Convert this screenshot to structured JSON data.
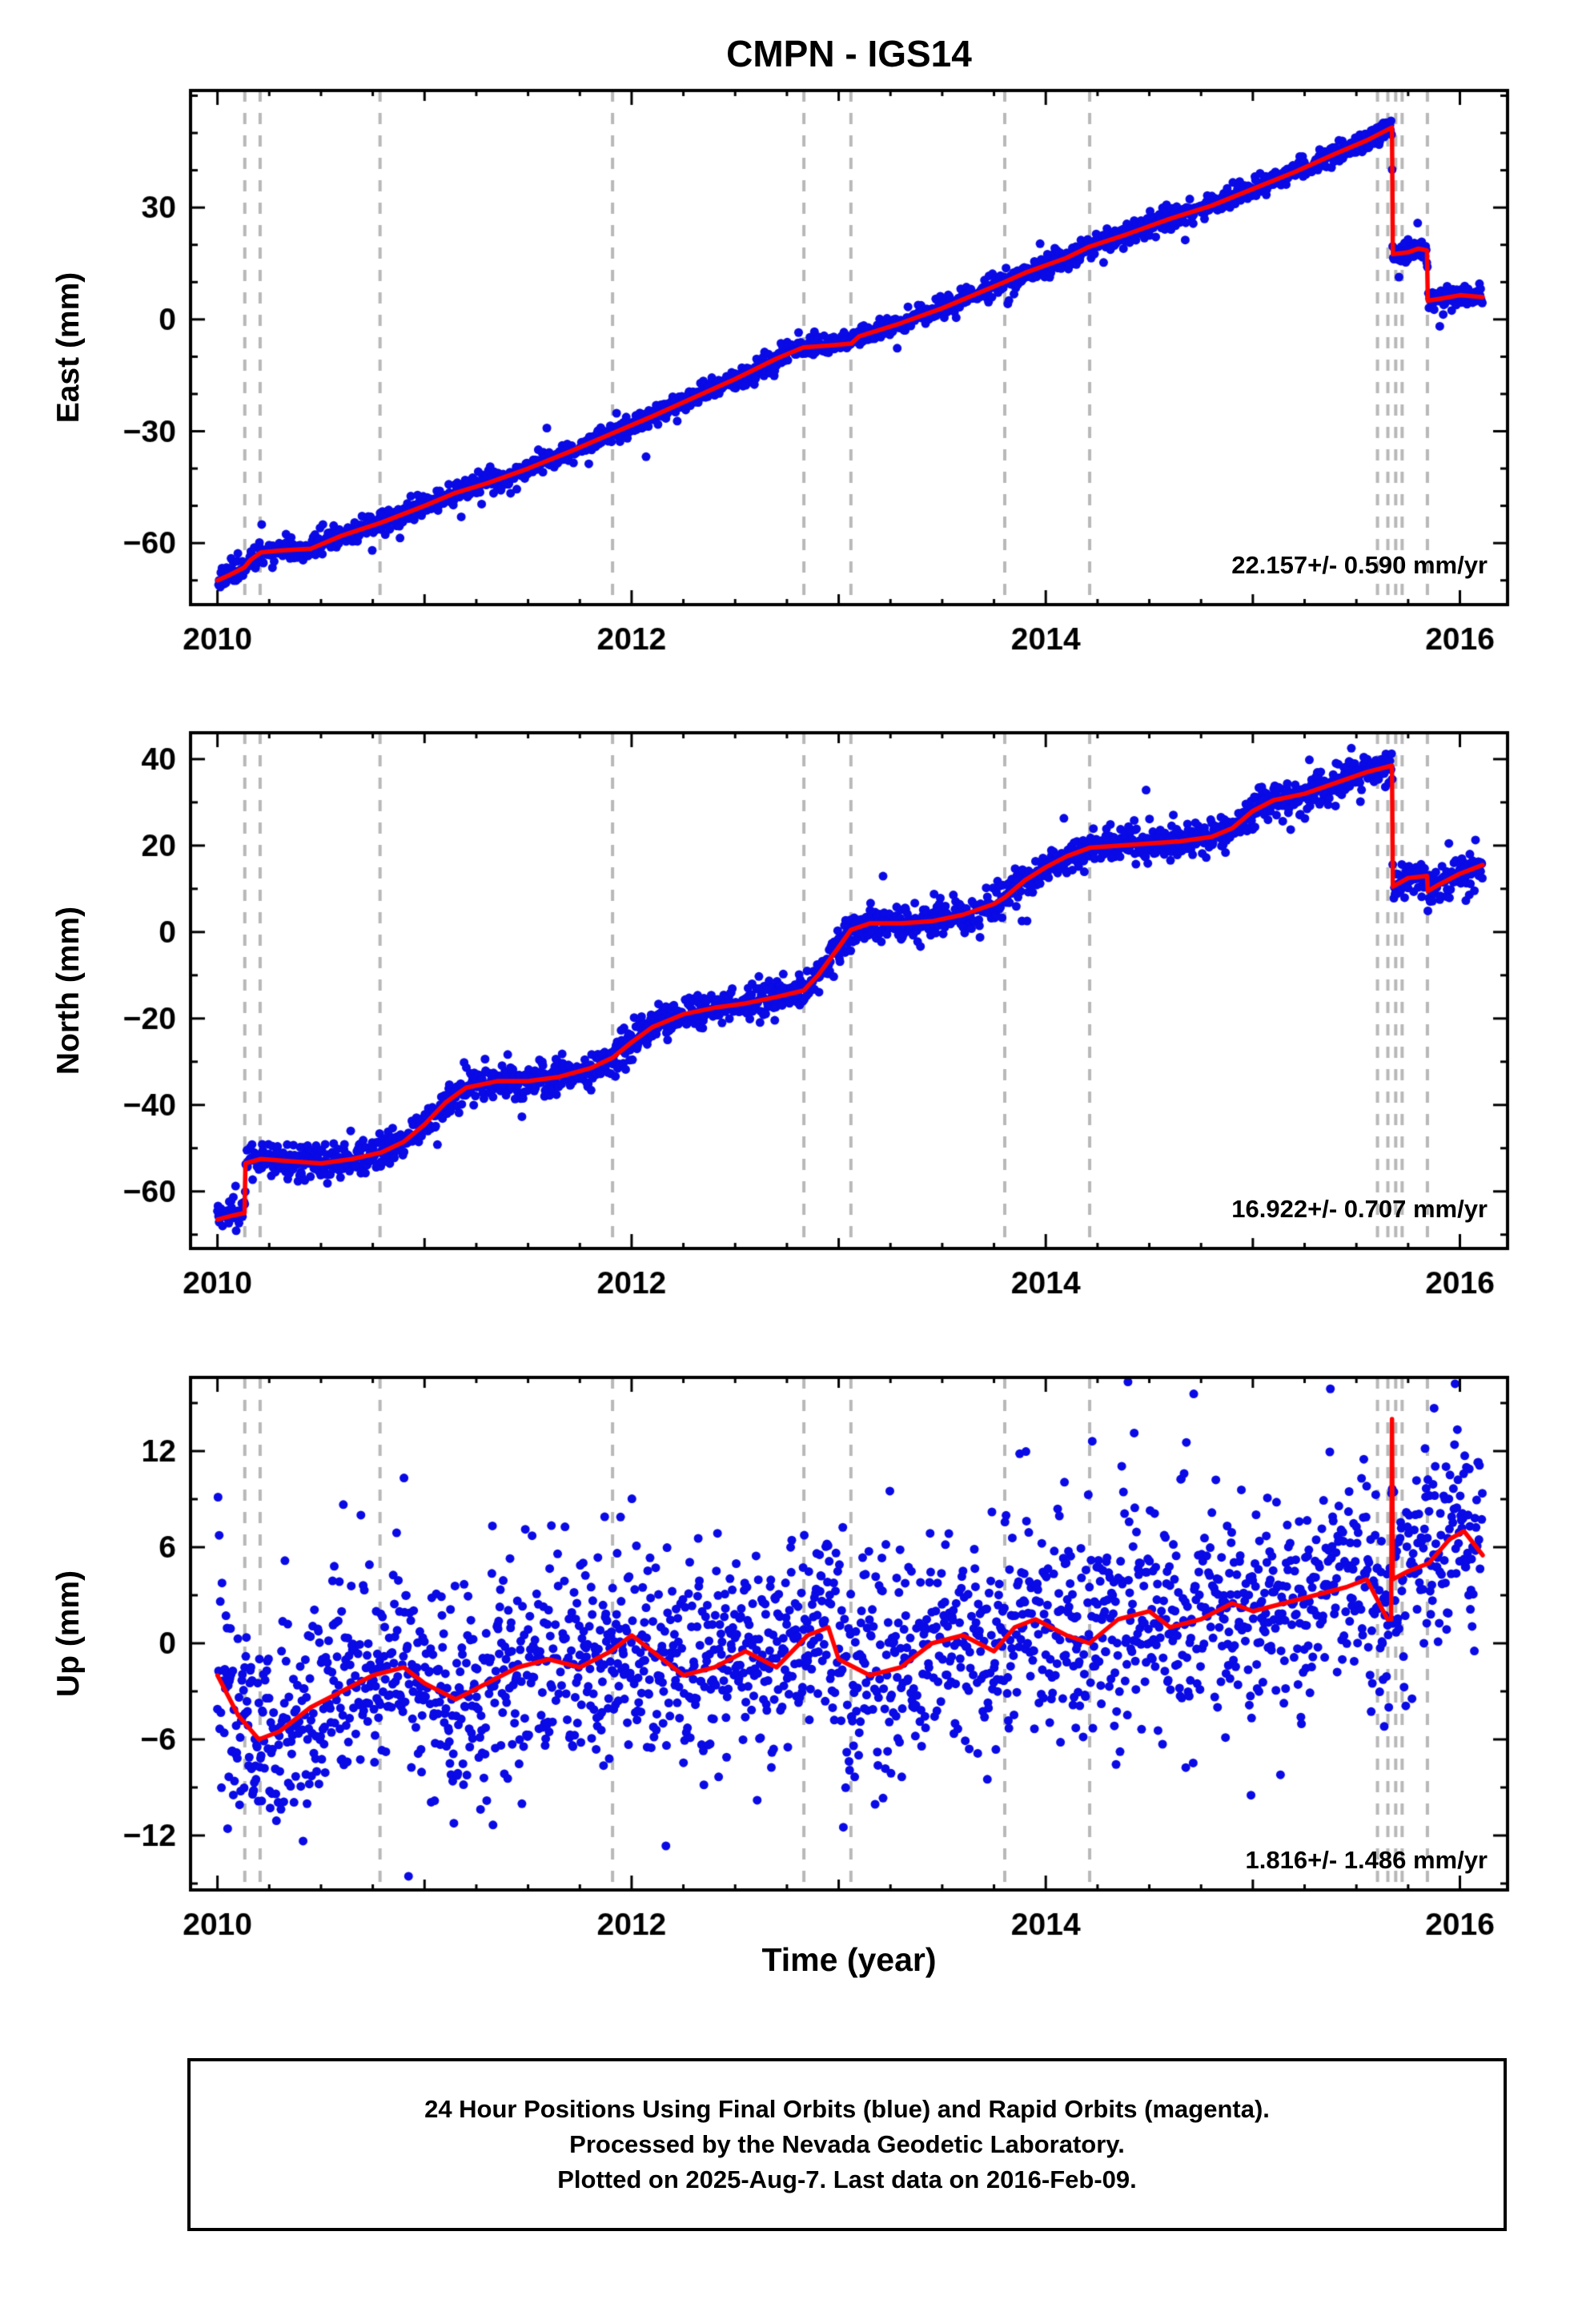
{
  "title": "CMPN - IGS14",
  "xlabel": "Time (year)",
  "footer": {
    "line1": "24 Hour Positions Using Final Orbits (blue) and Rapid Orbits (magenta).",
    "line2": "Processed by the Nevada Geodetic Laboratory.",
    "line3": "Plotted on 2025-Aug-7. Last data on 2016-Feb-09."
  },
  "colors": {
    "dots": "#0a0ae6",
    "trend": "#ff0000",
    "events": "#b8b8b8",
    "axis": "#000000",
    "text": "#000000"
  },
  "x_axis": {
    "lim": [
      2009.87,
      2016.23
    ],
    "major_ticks": [
      2010,
      2012,
      2014,
      2016
    ],
    "year_tick_step": 1,
    "minor_step": 0.25
  },
  "event_lines": [
    2010.132,
    2010.206,
    2010.785,
    2011.908,
    2012.832,
    2013.059,
    2013.802,
    2014.212,
    2015.602,
    2015.652,
    2015.69,
    2015.721,
    2015.843
  ],
  "chart_data": [
    {
      "type": "scatter",
      "name": "east",
      "ylabel": "East (mm)",
      "rate_label": "22.157+/- 0.590 mm/yr",
      "ylim": [
        -76.5,
        61.4
      ],
      "yticks": [
        30,
        0,
        -30,
        -60
      ],
      "y_minor_step": 10,
      "scatter_sigma": 1.4,
      "trend": [
        [
          2010.0,
          -70.0
        ],
        [
          2010.06,
          -68.5
        ],
        [
          2010.13,
          -66.5
        ],
        [
          2010.16,
          -64.5
        ],
        [
          2010.21,
          -62.5
        ],
        [
          2010.3,
          -62.0
        ],
        [
          2010.45,
          -61.5
        ],
        [
          2010.6,
          -58.0
        ],
        [
          2010.79,
          -54.5
        ],
        [
          2011.0,
          -50.0
        ],
        [
          2011.15,
          -46.5
        ],
        [
          2011.3,
          -44.0
        ],
        [
          2011.5,
          -40.0
        ],
        [
          2011.7,
          -35.5
        ],
        [
          2011.91,
          -30.5
        ],
        [
          2012.1,
          -26.0
        ],
        [
          2012.3,
          -21.0
        ],
        [
          2012.5,
          -16.0
        ],
        [
          2012.7,
          -10.5
        ],
        [
          2012.83,
          -7.5
        ],
        [
          2012.95,
          -7.0
        ],
        [
          2013.06,
          -6.5
        ],
        [
          2013.1,
          -4.5
        ],
        [
          2013.3,
          -1.0
        ],
        [
          2013.5,
          3.0
        ],
        [
          2013.8,
          10.0
        ],
        [
          2013.9,
          12.5
        ],
        [
          2014.1,
          16.5
        ],
        [
          2014.21,
          19.5
        ],
        [
          2014.4,
          23.0
        ],
        [
          2014.6,
          27.0
        ],
        [
          2014.8,
          30.5
        ],
        [
          2015.0,
          35.0
        ],
        [
          2015.2,
          39.5
        ],
        [
          2015.4,
          44.5
        ],
        [
          2015.55,
          48.0
        ],
        [
          2015.672,
          51.5
        ],
        [
          2015.676,
          17.5
        ],
        [
          2015.75,
          18.0
        ],
        [
          2015.8,
          19.0
        ],
        [
          2015.841,
          18.5
        ],
        [
          2015.845,
          5.0
        ],
        [
          2015.9,
          5.5
        ],
        [
          2016.0,
          6.5
        ],
        [
          2016.11,
          6.0
        ]
      ]
    },
    {
      "type": "scatter",
      "name": "north",
      "ylabel": "North (mm)",
      "rate_label": "16.922+/- 0.707 mm/yr",
      "ylim": [
        -73.2,
        46.1
      ],
      "yticks": [
        40,
        20,
        0,
        -20,
        -40,
        -60
      ],
      "y_minor_step": 10,
      "scatter_sigma": 1.9,
      "trend": [
        [
          2010.0,
          -66.5
        ],
        [
          2010.08,
          -65.5
        ],
        [
          2010.131,
          -65.0
        ],
        [
          2010.135,
          -53.5
        ],
        [
          2010.21,
          -52.5
        ],
        [
          2010.35,
          -53.0
        ],
        [
          2010.5,
          -53.5
        ],
        [
          2010.65,
          -52.5
        ],
        [
          2010.79,
          -51.0
        ],
        [
          2010.9,
          -48.5
        ],
        [
          2011.0,
          -44.5
        ],
        [
          2011.1,
          -39.5
        ],
        [
          2011.2,
          -36.0
        ],
        [
          2011.35,
          -34.5
        ],
        [
          2011.5,
          -34.5
        ],
        [
          2011.65,
          -33.5
        ],
        [
          2011.8,
          -31.5
        ],
        [
          2011.91,
          -29.0
        ],
        [
          2012.0,
          -25.5
        ],
        [
          2012.1,
          -22.0
        ],
        [
          2012.25,
          -19.0
        ],
        [
          2012.4,
          -17.5
        ],
        [
          2012.55,
          -16.5
        ],
        [
          2012.7,
          -15.0
        ],
        [
          2012.832,
          -13.5
        ],
        [
          2012.9,
          -10.0
        ],
        [
          2013.0,
          -3.5
        ],
        [
          2013.059,
          0.5
        ],
        [
          2013.15,
          2.0
        ],
        [
          2013.3,
          2.0
        ],
        [
          2013.45,
          2.5
        ],
        [
          2013.6,
          4.0
        ],
        [
          2013.75,
          6.5
        ],
        [
          2013.802,
          8.0
        ],
        [
          2013.9,
          12.0
        ],
        [
          2014.0,
          15.0
        ],
        [
          2014.1,
          17.5
        ],
        [
          2014.212,
          19.5
        ],
        [
          2014.35,
          20.0
        ],
        [
          2014.5,
          20.5
        ],
        [
          2014.65,
          21.0
        ],
        [
          2014.8,
          22.0
        ],
        [
          2014.9,
          24.0
        ],
        [
          2015.0,
          28.0
        ],
        [
          2015.1,
          30.5
        ],
        [
          2015.25,
          32.0
        ],
        [
          2015.4,
          34.5
        ],
        [
          2015.55,
          37.0
        ],
        [
          2015.672,
          38.5
        ],
        [
          2015.676,
          10.5
        ],
        [
          2015.75,
          12.5
        ],
        [
          2015.841,
          13.0
        ],
        [
          2015.845,
          9.5
        ],
        [
          2015.9,
          11.0
        ],
        [
          2016.0,
          13.5
        ],
        [
          2016.11,
          15.5
        ]
      ]
    },
    {
      "type": "scatter",
      "name": "up",
      "ylabel": "Up (mm)",
      "rate_label": "1.816+/- 1.486 mm/yr",
      "ylim": [
        -15.4,
        16.6
      ],
      "yticks": [
        12,
        6,
        0,
        -6,
        -12
      ],
      "y_minor_step": 3,
      "scatter_sigma": 3.3,
      "trend": [
        [
          2010.0,
          -2.0
        ],
        [
          2010.1,
          -4.5
        ],
        [
          2010.2,
          -6.0
        ],
        [
          2010.3,
          -5.5
        ],
        [
          2010.45,
          -4.0
        ],
        [
          2010.6,
          -3.0
        ],
        [
          2010.75,
          -2.0
        ],
        [
          2010.9,
          -1.5
        ],
        [
          2011.0,
          -2.5
        ],
        [
          2011.15,
          -3.5
        ],
        [
          2011.3,
          -2.5
        ],
        [
          2011.45,
          -1.5
        ],
        [
          2011.6,
          -1.0
        ],
        [
          2011.75,
          -1.5
        ],
        [
          2011.9,
          -0.5
        ],
        [
          2012.0,
          0.5
        ],
        [
          2012.1,
          -0.5
        ],
        [
          2012.25,
          -2.0
        ],
        [
          2012.4,
          -1.5
        ],
        [
          2012.55,
          -0.5
        ],
        [
          2012.7,
          -1.5
        ],
        [
          2012.85,
          0.5
        ],
        [
          2012.95,
          1.0
        ],
        [
          2013.0,
          -1.0
        ],
        [
          2013.15,
          -2.0
        ],
        [
          2013.3,
          -1.5
        ],
        [
          2013.45,
          0.0
        ],
        [
          2013.6,
          0.5
        ],
        [
          2013.75,
          -0.5
        ],
        [
          2013.85,
          1.0
        ],
        [
          2013.95,
          1.5
        ],
        [
          2014.1,
          0.5
        ],
        [
          2014.21,
          0.0
        ],
        [
          2014.35,
          1.5
        ],
        [
          2014.5,
          2.0
        ],
        [
          2014.6,
          1.0
        ],
        [
          2014.75,
          1.5
        ],
        [
          2014.9,
          2.5
        ],
        [
          2015.0,
          2.0
        ],
        [
          2015.15,
          2.5
        ],
        [
          2015.3,
          3.0
        ],
        [
          2015.45,
          3.5
        ],
        [
          2015.55,
          4.0
        ],
        [
          2015.65,
          1.5
        ],
        [
          2015.668,
          1.5
        ],
        [
          2015.672,
          14.0
        ],
        [
          2015.676,
          4.0
        ],
        [
          2015.75,
          4.5
        ],
        [
          2015.85,
          5.0
        ],
        [
          2015.95,
          6.5
        ],
        [
          2016.02,
          7.0
        ],
        [
          2016.11,
          5.5
        ]
      ]
    }
  ]
}
